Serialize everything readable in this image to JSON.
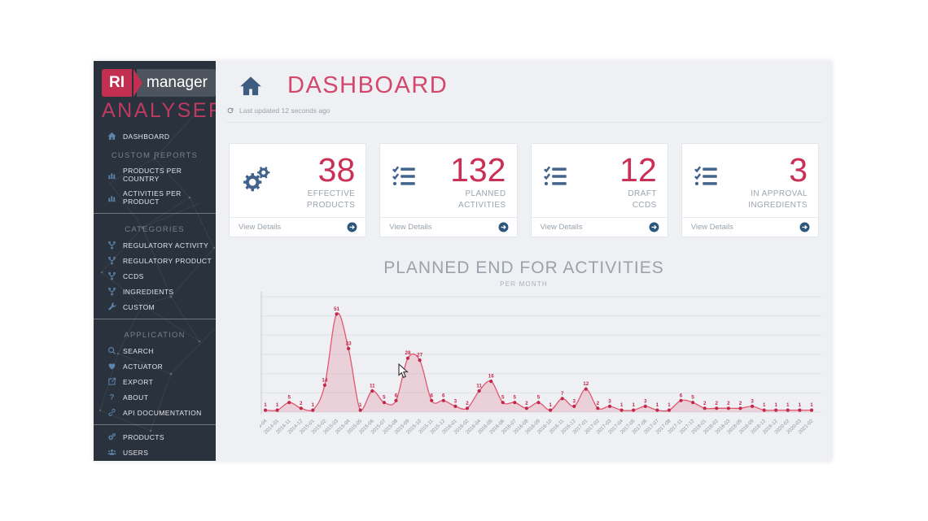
{
  "colors": {
    "accent": "#c93056",
    "sidebar_background": "#2a323d",
    "main_background": "#eef0f3",
    "steel_icon": "#41638c",
    "sidebar_icon": "#5d83ab",
    "muted_text": "#9aa3ae"
  },
  "sidebar": {
    "logo": {
      "brand_left": "RI",
      "brand_right": "manager",
      "product": "ANALYSER"
    },
    "groups": [
      {
        "divider_before": false,
        "header": "",
        "items": [
          {
            "label": "DASHBOARD",
            "icon": "home-icon",
            "active": true
          }
        ]
      },
      {
        "divider_before": false,
        "header": "CUSTOM REPORTS",
        "items": [
          {
            "label": "PRODUCTS PER COUNTRY",
            "icon": "bar-chart-icon"
          },
          {
            "label": "ACTIVITIES PER PRODUCT",
            "icon": "bar-chart-icon"
          }
        ]
      },
      {
        "divider_before": true,
        "header": "CATEGORIES",
        "items": [
          {
            "label": "REGULATORY ACTIVITY",
            "icon": "fork-icon"
          },
          {
            "label": "REGULATORY PRODUCT",
            "icon": "fork-icon"
          },
          {
            "label": "CCDS",
            "icon": "fork-icon"
          },
          {
            "label": "INGREDIENTS",
            "icon": "fork-icon"
          },
          {
            "label": "CUSTOM",
            "icon": "wrench-icon"
          }
        ]
      },
      {
        "divider_before": true,
        "header": "APPLICATION",
        "items": [
          {
            "label": "SEARCH",
            "icon": "search-icon"
          },
          {
            "label": "ACTUATOR",
            "icon": "heart-icon"
          },
          {
            "label": "EXPORT",
            "icon": "export-icon"
          },
          {
            "label": "ABOUT",
            "icon": "question-icon"
          },
          {
            "label": "API DOCUMENTATION",
            "icon": "link-icon"
          }
        ]
      },
      {
        "divider_before": true,
        "header": "",
        "items": [
          {
            "label": "PRODUCTS",
            "icon": "gears-icon"
          },
          {
            "label": "USERS",
            "icon": "users-icon"
          }
        ]
      }
    ]
  },
  "header": {
    "title": "DASHBOARD",
    "home_icon": "home-icon",
    "refresh_icon": "refresh-icon",
    "last_updated": "Last updated 12 seconds ago"
  },
  "cards": [
    {
      "value": "38",
      "label_lines": [
        "EFFECTIVE",
        "PRODUCTS"
      ],
      "icon": "gears-icon",
      "icon_size": 38,
      "footer_label": "View Details",
      "footer_icon": "arrow-circle-icon"
    },
    {
      "value": "132",
      "label_lines": [
        "PLANNED",
        "ACTIVITIES"
      ],
      "icon": "checklist-icon",
      "icon_size": 30,
      "footer_label": "View Details",
      "footer_icon": "arrow-circle-icon"
    },
    {
      "value": "12",
      "label_lines": [
        "DRAFT",
        "CCDS"
      ],
      "icon": "checklist-icon",
      "icon_size": 30,
      "footer_label": "View Details",
      "footer_icon": "arrow-circle-icon"
    },
    {
      "value": "3",
      "label_lines": [
        "IN APPROVAL",
        "INGREDIENTS"
      ],
      "icon": "checklist-icon",
      "icon_size": 30,
      "footer_label": "View Details",
      "footer_icon": "arrow-circle-icon"
    }
  ],
  "chart_data": {
    "type": "area",
    "title": "PLANNED END FOR ACTIVITIES",
    "subtitle": "PER MONTH",
    "x": [
      "2009-04",
      "2014-01",
      "2014-11",
      "2014-12",
      "2015-01",
      "2015-02",
      "2015-03",
      "2015-04",
      "2015-05",
      "2015-06",
      "2015-07",
      "2015-08",
      "2015-09",
      "2015-10",
      "2015-11",
      "2015-12",
      "2016-01",
      "2016-02",
      "2016-04",
      "2016-05",
      "2016-06",
      "2016-07",
      "2016-08",
      "2016-09",
      "2016-10",
      "2016-11",
      "2016-12",
      "2017-01",
      "2017-02",
      "2017-03",
      "2017-04",
      "2017-05",
      "2017-06",
      "2017-07",
      "2017-08",
      "2017-11",
      "2017-12",
      "2018-01",
      "2018-02",
      "2018-03",
      "2018-05",
      "2018-09",
      "2018-12",
      "2019-12",
      "2020-02",
      "2020-03",
      "2021-02"
    ],
    "values": [
      1,
      1,
      5,
      2,
      1,
      14,
      51,
      33,
      1,
      11,
      5,
      6,
      28,
      27,
      6,
      6,
      3,
      2,
      11,
      16,
      5,
      5,
      2,
      5,
      1,
      7,
      3,
      12,
      2,
      3,
      1,
      1,
      3,
      1,
      1,
      6,
      5,
      2,
      2,
      2,
      2,
      3,
      1,
      1,
      1,
      1,
      1
    ],
    "ylim": [
      0,
      60
    ],
    "grid": true,
    "grid_step": 10,
    "legend": "none",
    "line_color": "#e0576f",
    "fill_color": "rgba(214,69,96,0.18)",
    "point_color": "#c2274b",
    "label_color": "#c2274b",
    "tick_color": "#8d959f"
  }
}
